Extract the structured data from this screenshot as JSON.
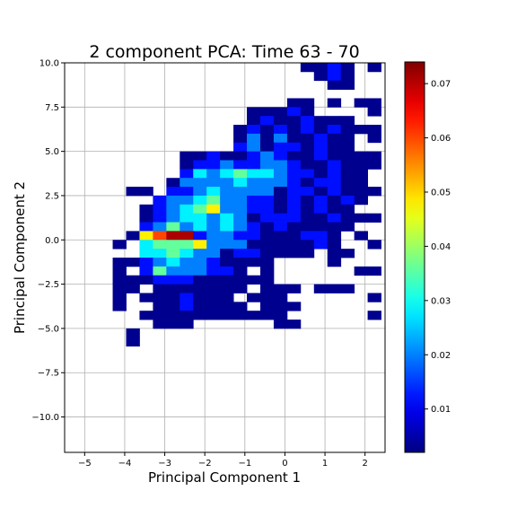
{
  "chart_data": {
    "type": "heatmap",
    "title": "2 component PCA: Time 63 - 70",
    "xlabel": "Principal Component 1",
    "ylabel": "Principal Component 2",
    "xlim": [
      -5.5,
      2.5
    ],
    "ylim": [
      -12,
      10
    ],
    "xticks": [
      -5,
      -4,
      -3,
      -2,
      -1,
      0,
      1,
      2
    ],
    "xtick_labels": [
      "−5",
      "−4",
      "−3",
      "−2",
      "−1",
      "0",
      "1",
      "2"
    ],
    "yticks": [
      -10.0,
      -7.5,
      -5.0,
      -2.5,
      0.0,
      2.5,
      5.0,
      7.5,
      10.0
    ],
    "ytick_labels": [
      "−10.0",
      "−7.5",
      "−5.0",
      "−2.5",
      "0.0",
      "2.5",
      "5.0",
      "7.5",
      "10.0"
    ],
    "grid": true,
    "colormap": "jet",
    "colorbar": {
      "range": [
        0.002,
        0.074
      ],
      "ticks": [
        0.01,
        0.02,
        0.03,
        0.04,
        0.05,
        0.06,
        0.07
      ],
      "tick_labels": [
        "0.01",
        "0.02",
        "0.03",
        "0.04",
        "0.05",
        "0.06",
        "0.07"
      ]
    },
    "bins": {
      "x_start": -4.3,
      "x_step": 0.335,
      "y_top": 10.0,
      "y_step": 0.5,
      "columns": 20
    },
    "rows": [
      ". . . . . . . . . . . . . . 1 1 2 1 . 1",
      ". . . . . . . . . . . . . . . 1 2 1 . .",
      ". . . . . . . . . . . . . . . . 1 1 . .",
      ". . . . . . . . . . . . . . . . . . . .",
      ". . . . . . . . . . . . . 1 1 . 1 . 1 1",
      ". . . . . . . . . . 1 1 1 2 1 . . . . 1",
      ". . . . . . . . . . 1 2 1 1 2 1 1 1 . .",
      ". . . . . . . . . 1 2 1 2 1 2 1 2 1 1 1",
      ". . . . . . . . . 1 3 1 3 1 1 2 1 1 . 1",
      ". . . . . . . . . 2 3 1 2 2 1 2 1 1 . .",
      ". . . . . 1 1 2 1 1 2 3 2 1 1 2 1 1 1 1",
      ". . . . . 1 2 2 3 2 2 3 3 2 1 1 2 1 1 1",
      ". . . . . 2 4 3 4 5 4 4 3 2 2 1 2 1 1 .",
      ". . . . 1 3 3 3 3 4 3 3 3 2 1 2 2 1 1 .",
      ". 1 1 . 2 2 3 4 3 3 3 3 1 2 2 1 2 1 1 1",
      ". . . 2 3 3 4 5 3 3 2 2 1 2 1 2 1 2 1 .",
      ". . 1 2 3 4 5 6 3 3 2 2 1 2 1 2 1 1 . .",
      ". . 1 2 3 4 4 3 4 3 1 2 2 2 1 1 2 1 1 1",
      ". . 2 3 5 3 4 3 4 3 2 1 2 1 1 1 1 1 . .",
      ". 1 6 7 8 8 2 3 3 2 2 1 1 1 2 2 1 . 1 .",
      "1 . 4 5 5 5 6 3 3 3 1 1 1 1 1 2 1 . . 1",
      ". . 4 4 5 4 3 3 1 2 2 1 1 1 1 . 1 1 . .",
      "1 1 2 3 4 3 3 2 1 1 1 1 . . . . 1 . . .",
      "1 . 2 5 3 3 3 2 2 1 . 1 . . . . . . 1 1",
      "1 1 1 2 2 2 1 1 1 1 1 1 . . . . . . . .",
      "1 1 . 1 1 1 1 1 1 1 . 1 1 1 . 1 1 1 . .",
      "1 . 1 1 1 2 1 1 1 . 1 1 1 . . . . . . 1",
      "1 . . 1 1 2 1 1 1 1 . 1 1 1 . . . . . .",
      ". . 1 1 1 1 1 1 1 1 1 1 1 . . . . . . 1",
      ". . . 1 1 1 . . . . . . 1 1 . . . . . .",
      ". 1 . . . . . . . . . . . . . . . . . .",
      ". 1 . . . . . . . . . . . . . . . . . ."
    ],
    "level_values": [
      0.003,
      0.012,
      0.02,
      0.028,
      0.036,
      0.048,
      0.06,
      0.071
    ]
  }
}
